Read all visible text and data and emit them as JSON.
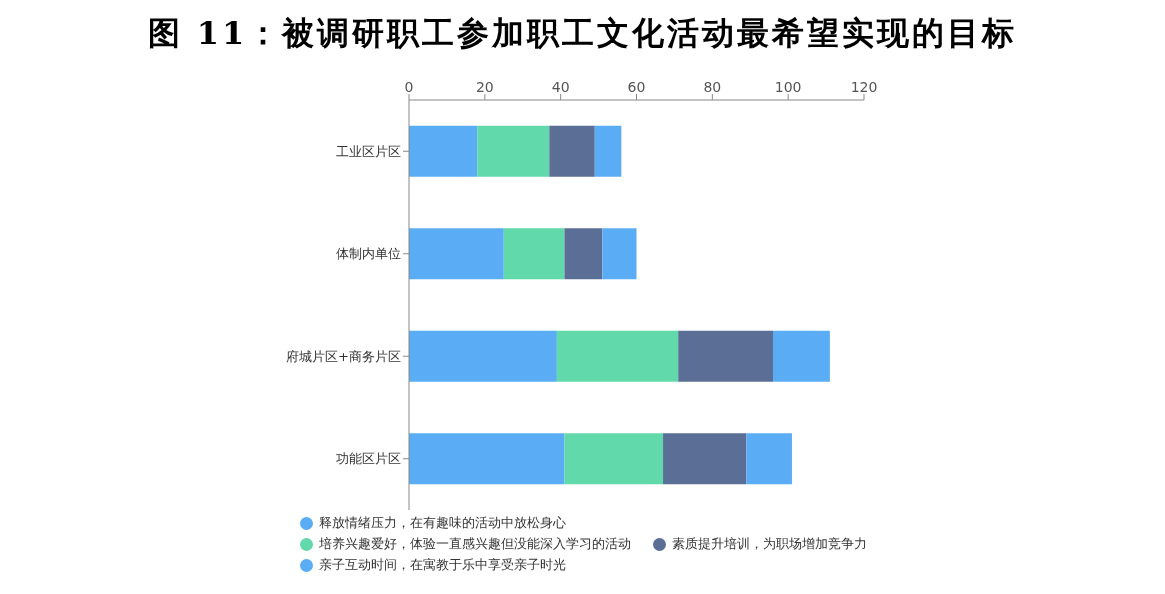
{
  "chart_data": {
    "type": "bar",
    "title": "图 11：被调研职工参加职工文化活动最希望实现的目标",
    "orientation": "horizontal",
    "stacked": true,
    "categories": [
      "工业区片区",
      "体制内单位",
      "府城片区+商务片区",
      "功能区片区"
    ],
    "series": [
      {
        "name": "释放情绪压力，在有趣味的活动中放松身心",
        "color": "#5aadf4",
        "values": [
          18,
          25,
          39,
          41
        ]
      },
      {
        "name": "培养兴趣爱好，体验一直感兴趣但没能深入学习的活动",
        "color": "#62d9ab",
        "values": [
          19,
          16,
          32,
          26
        ]
      },
      {
        "name": "素质提升培训，为职场增加竞争力",
        "color": "#5b6e96",
        "values": [
          12,
          10,
          25,
          22
        ]
      },
      {
        "name": "亲子互动时间，在寓教于乐中享受亲子时光",
        "color": "#5aadf4",
        "values": [
          7,
          9,
          15,
          12
        ]
      }
    ],
    "xlim": [
      0,
      120
    ],
    "xticks": [
      0,
      20,
      40,
      60,
      80,
      100,
      120
    ],
    "legend": "bottom"
  }
}
